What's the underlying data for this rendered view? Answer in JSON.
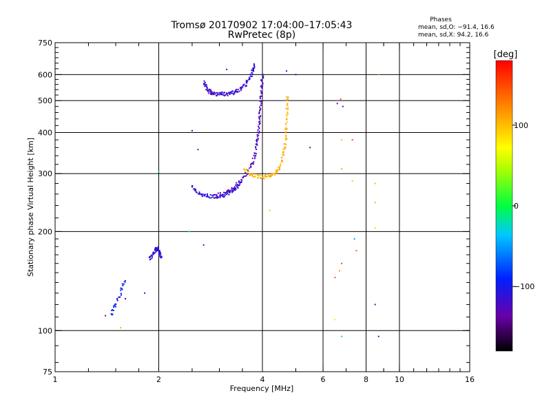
{
  "chart_data": {
    "type": "scatter",
    "title": "Tromsø 20170902 17:04:00–17:05:43",
    "subtitle": "RwPretec (8p)",
    "xlabel": "Frequency [MHz]",
    "ylabel": "Stationary phase Virtual Height [km]",
    "x_scale": "log2",
    "y_scale": "log",
    "xlim": [
      1,
      16
    ],
    "ylim": [
      75,
      750
    ],
    "x_ticks": [
      1,
      2,
      4,
      6,
      8,
      10,
      16
    ],
    "x_tick_labels": [
      "1",
      "2",
      "4",
      "6",
      "8",
      "10",
      "16"
    ],
    "y_ticks": [
      75,
      100,
      200,
      300,
      400,
      500,
      600,
      750
    ],
    "y_tick_labels": [
      "75",
      "100",
      "200",
      "300",
      "400",
      "500",
      "600",
      "750"
    ],
    "grid": true,
    "grid_x": [
      2,
      4,
      6,
      8,
      10
    ],
    "grid_y": [
      100,
      200,
      300,
      400,
      500,
      600
    ],
    "info": {
      "title": "Phases",
      "line_o": "mean, sd,O: −91.4, 16.6",
      "line_x": "mean, sd,X:  94.2, 16.6"
    },
    "colorbar": {
      "label": "[deg]",
      "range": [
        -180,
        180
      ],
      "ticks": [
        100,
        0,
        -100
      ],
      "tick_labels": [
        "100",
        "0",
        "−100"
      ]
    },
    "traces": [
      {
        "curve": "lower-F",
        "x": [
          2.5,
          2.6,
          2.7,
          2.8,
          2.95,
          3.1,
          3.2,
          3.3,
          3.4,
          3.5
        ],
        "y": [
          275,
          262,
          258,
          256,
          256,
          258,
          262,
          268,
          276,
          285
        ],
        "phase": -110
      },
      {
        "curve": "upper-F",
        "x": [
          2.7,
          2.75,
          2.8,
          2.85,
          2.9,
          3.0,
          3.1,
          3.2,
          3.3,
          3.4,
          3.5,
          3.6,
          3.7,
          3.75,
          3.8
        ],
        "y": [
          570,
          548,
          535,
          528,
          525,
          524,
          524,
          526,
          530,
          537,
          548,
          565,
          595,
          620,
          645
        ],
        "phase": -115
      },
      {
        "curve": "O-trace",
        "x": [
          2.9,
          3.1,
          3.3,
          3.5,
          3.65,
          3.75,
          3.82,
          3.87,
          3.9,
          3.93,
          3.95,
          3.97,
          3.99,
          4.0
        ],
        "y": [
          256,
          262,
          272,
          288,
          305,
          325,
          350,
          380,
          410,
          445,
          480,
          520,
          560,
          600
        ],
        "phase": -125
      },
      {
        "curve": "X-trace",
        "x": [
          3.55,
          3.7,
          3.85,
          4.0,
          4.15,
          4.3,
          4.45,
          4.55,
          4.62,
          4.67,
          4.7,
          4.72,
          4.74
        ],
        "y": [
          308,
          300,
          295,
          293,
          294,
          298,
          308,
          325,
          350,
          380,
          420,
          470,
          525
        ],
        "phase": 105
      },
      {
        "curve": "E-cluster",
        "x": [
          1.88,
          1.92,
          1.95,
          1.98,
          2.01,
          2.04
        ],
        "y": [
          165,
          170,
          175,
          178,
          172,
          168
        ],
        "phase": -112
      },
      {
        "curve": "scatter-low",
        "x": [
          1.45,
          1.5,
          1.55,
          1.6
        ],
        "y": [
          112,
          120,
          130,
          145
        ],
        "phase": -95
      }
    ],
    "points": [
      {
        "x": 1.4,
        "y": 111,
        "phase": -140
      },
      {
        "x": 1.55,
        "y": 102,
        "phase": 110
      },
      {
        "x": 1.6,
        "y": 125,
        "phase": -150
      },
      {
        "x": 1.6,
        "y": 140,
        "phase": -30
      },
      {
        "x": 1.82,
        "y": 130,
        "phase": -120
      },
      {
        "x": 2.0,
        "y": 305,
        "phase": -20
      },
      {
        "x": 2.45,
        "y": 200,
        "phase": -20
      },
      {
        "x": 2.5,
        "y": 405,
        "phase": -110
      },
      {
        "x": 2.6,
        "y": 355,
        "phase": -110
      },
      {
        "x": 2.7,
        "y": 182,
        "phase": -80
      },
      {
        "x": 3.15,
        "y": 622,
        "phase": -130
      },
      {
        "x": 4.7,
        "y": 615,
        "phase": -100
      },
      {
        "x": 4.2,
        "y": 232,
        "phase": 100
      },
      {
        "x": 5.5,
        "y": 360,
        "phase": -145
      },
      {
        "x": 6.6,
        "y": 490,
        "phase": -110
      },
      {
        "x": 6.75,
        "y": 505,
        "phase": 150
      },
      {
        "x": 6.8,
        "y": 380,
        "phase": 100
      },
      {
        "x": 6.8,
        "y": 310,
        "phase": 110
      },
      {
        "x": 7.3,
        "y": 380,
        "phase": 150
      },
      {
        "x": 7.3,
        "y": 285,
        "phase": 40
      },
      {
        "x": 7.4,
        "y": 190,
        "phase": -50
      },
      {
        "x": 7.5,
        "y": 175,
        "phase": 140
      },
      {
        "x": 6.8,
        "y": 160,
        "phase": 150
      },
      {
        "x": 6.7,
        "y": 152,
        "phase": 120
      },
      {
        "x": 6.5,
        "y": 145,
        "phase": 150
      },
      {
        "x": 6.5,
        "y": 108,
        "phase": 60
      },
      {
        "x": 6.8,
        "y": 96,
        "phase": -30
      },
      {
        "x": 8.5,
        "y": 280,
        "phase": 100
      },
      {
        "x": 8.5,
        "y": 245,
        "phase": 110
      },
      {
        "x": 8.5,
        "y": 205,
        "phase": 90
      },
      {
        "x": 8.5,
        "y": 120,
        "phase": -140
      },
      {
        "x": 8.7,
        "y": 96,
        "phase": -130
      },
      {
        "x": 8.7,
        "y": 600,
        "phase": 120
      },
      {
        "x": 5.0,
        "y": 600,
        "phase": -110
      },
      {
        "x": 6.85,
        "y": 480,
        "phase": -120
      }
    ]
  }
}
